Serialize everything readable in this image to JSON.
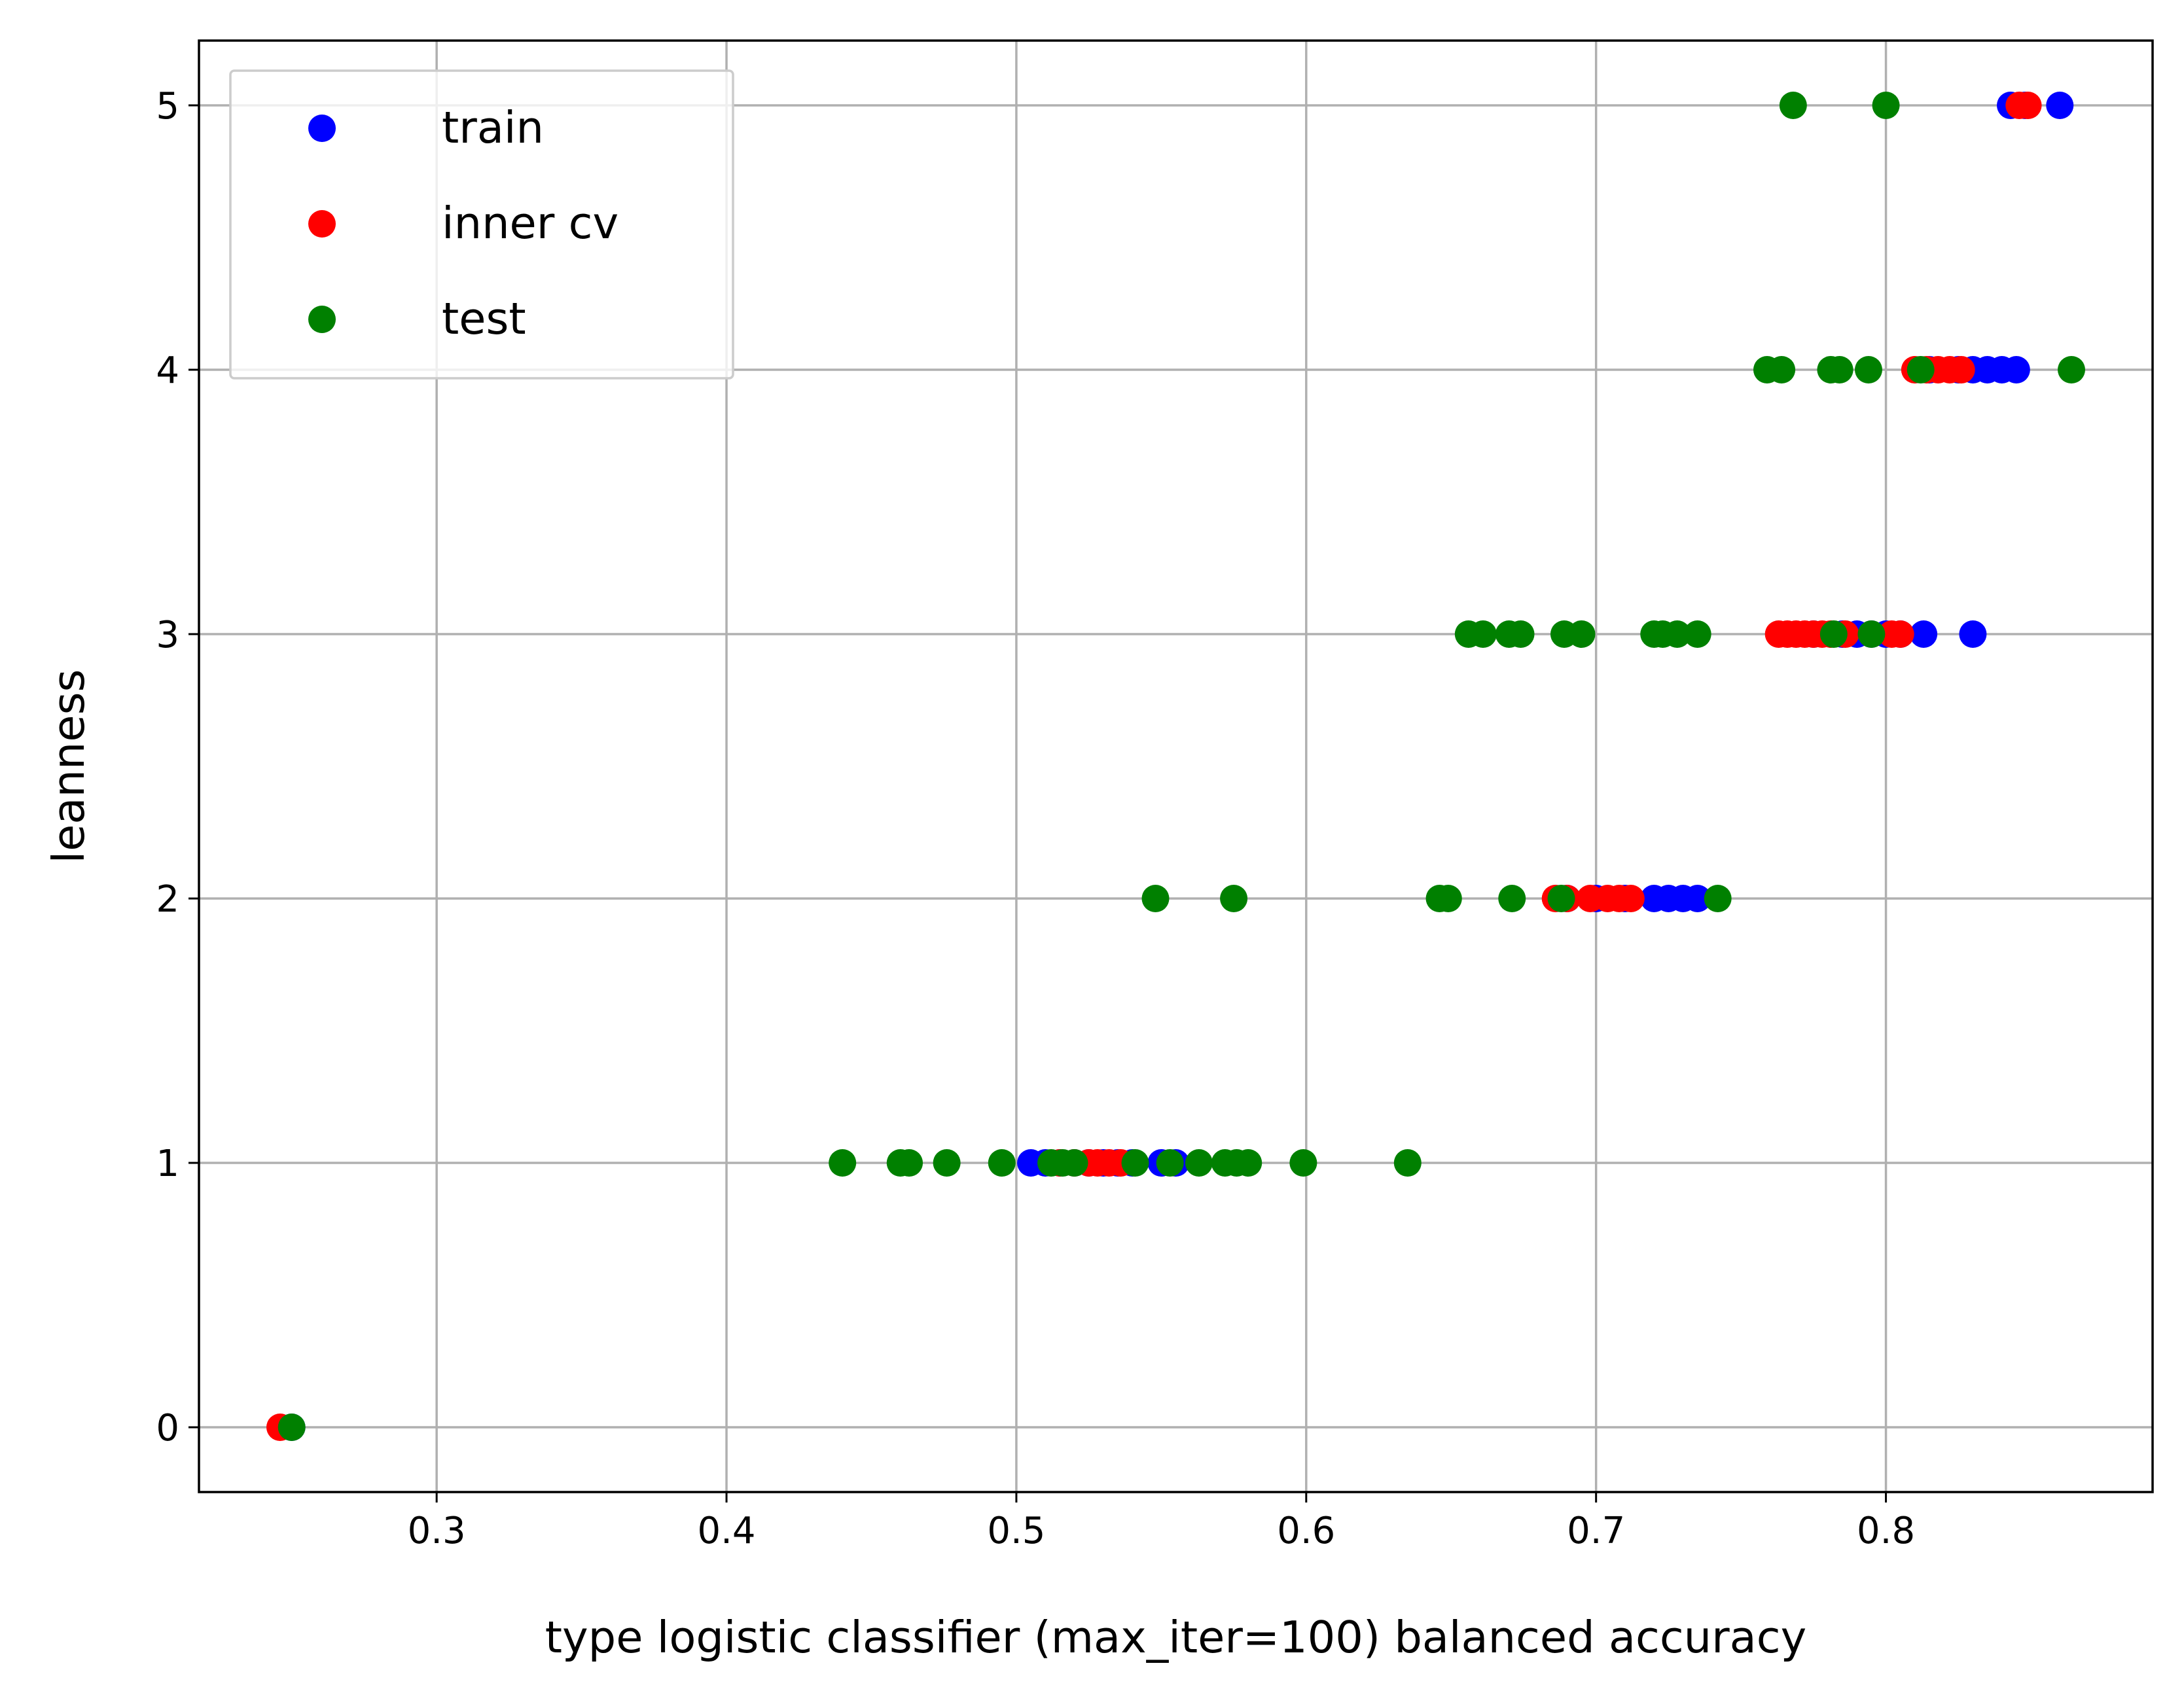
{
  "chart_data": {
    "type": "scatter",
    "xlabel": "type logistic classifier (max_iter=100) balanced accuracy",
    "ylabel": "leanness",
    "xlim": [
      0.218,
      0.892
    ],
    "ylim": [
      -0.245,
      5.245
    ],
    "x_ticks": [
      {
        "value": 0.3,
        "label": "0.3"
      },
      {
        "value": 0.4,
        "label": "0.4"
      },
      {
        "value": 0.5,
        "label": "0.5"
      },
      {
        "value": 0.6,
        "label": "0.6"
      },
      {
        "value": 0.7,
        "label": "0.7"
      },
      {
        "value": 0.8,
        "label": "0.8"
      }
    ],
    "y_ticks": [
      {
        "value": 0,
        "label": "0"
      },
      {
        "value": 1,
        "label": "1"
      },
      {
        "value": 2,
        "label": "2"
      },
      {
        "value": 3,
        "label": "3"
      },
      {
        "value": 4,
        "label": "4"
      },
      {
        "value": 5,
        "label": "5"
      }
    ],
    "grid": true,
    "legend_position": "top-left",
    "series": [
      {
        "name": "train",
        "color": "#0000ff",
        "points": [
          {
            "x": 0.25,
            "y": 0
          },
          {
            "x": 0.505,
            "y": 1
          },
          {
            "x": 0.51,
            "y": 1
          },
          {
            "x": 0.515,
            "y": 1
          },
          {
            "x": 0.52,
            "y": 1
          },
          {
            "x": 0.525,
            "y": 1
          },
          {
            "x": 0.53,
            "y": 1
          },
          {
            "x": 0.535,
            "y": 1
          },
          {
            "x": 0.54,
            "y": 1
          },
          {
            "x": 0.55,
            "y": 1
          },
          {
            "x": 0.555,
            "y": 1
          },
          {
            "x": 0.69,
            "y": 2
          },
          {
            "x": 0.7,
            "y": 2
          },
          {
            "x": 0.71,
            "y": 2
          },
          {
            "x": 0.72,
            "y": 2
          },
          {
            "x": 0.725,
            "y": 2
          },
          {
            "x": 0.73,
            "y": 2
          },
          {
            "x": 0.735,
            "y": 2
          },
          {
            "x": 0.775,
            "y": 3
          },
          {
            "x": 0.785,
            "y": 3
          },
          {
            "x": 0.79,
            "y": 3
          },
          {
            "x": 0.795,
            "y": 3
          },
          {
            "x": 0.8,
            "y": 3
          },
          {
            "x": 0.805,
            "y": 3
          },
          {
            "x": 0.813,
            "y": 3
          },
          {
            "x": 0.83,
            "y": 3
          },
          {
            "x": 0.815,
            "y": 4
          },
          {
            "x": 0.825,
            "y": 4
          },
          {
            "x": 0.83,
            "y": 4
          },
          {
            "x": 0.835,
            "y": 4
          },
          {
            "x": 0.84,
            "y": 4
          },
          {
            "x": 0.845,
            "y": 4
          },
          {
            "x": 0.843,
            "y": 5
          },
          {
            "x": 0.848,
            "y": 5
          },
          {
            "x": 0.86,
            "y": 5
          }
        ]
      },
      {
        "name": "inner cv",
        "color": "#ff0000",
        "points": [
          {
            "x": 0.246,
            "y": 0
          },
          {
            "x": 0.515,
            "y": 1
          },
          {
            "x": 0.52,
            "y": 1
          },
          {
            "x": 0.525,
            "y": 1
          },
          {
            "x": 0.528,
            "y": 1
          },
          {
            "x": 0.532,
            "y": 1
          },
          {
            "x": 0.536,
            "y": 1
          },
          {
            "x": 0.686,
            "y": 2
          },
          {
            "x": 0.69,
            "y": 2
          },
          {
            "x": 0.698,
            "y": 2
          },
          {
            "x": 0.704,
            "y": 2
          },
          {
            "x": 0.708,
            "y": 2
          },
          {
            "x": 0.712,
            "y": 2
          },
          {
            "x": 0.763,
            "y": 3
          },
          {
            "x": 0.766,
            "y": 3
          },
          {
            "x": 0.769,
            "y": 3
          },
          {
            "x": 0.772,
            "y": 3
          },
          {
            "x": 0.775,
            "y": 3
          },
          {
            "x": 0.778,
            "y": 3
          },
          {
            "x": 0.781,
            "y": 3
          },
          {
            "x": 0.786,
            "y": 3
          },
          {
            "x": 0.802,
            "y": 3
          },
          {
            "x": 0.805,
            "y": 3
          },
          {
            "x": 0.81,
            "y": 4
          },
          {
            "x": 0.814,
            "y": 4
          },
          {
            "x": 0.818,
            "y": 4
          },
          {
            "x": 0.822,
            "y": 4
          },
          {
            "x": 0.826,
            "y": 4
          },
          {
            "x": 0.846,
            "y": 5
          },
          {
            "x": 0.849,
            "y": 5
          }
        ]
      },
      {
        "name": "test",
        "color": "#008000",
        "points": [
          {
            "x": 0.25,
            "y": 0
          },
          {
            "x": 0.44,
            "y": 1
          },
          {
            "x": 0.46,
            "y": 1
          },
          {
            "x": 0.463,
            "y": 1
          },
          {
            "x": 0.476,
            "y": 1
          },
          {
            "x": 0.495,
            "y": 1
          },
          {
            "x": 0.512,
            "y": 1
          },
          {
            "x": 0.516,
            "y": 1
          },
          {
            "x": 0.52,
            "y": 1
          },
          {
            "x": 0.541,
            "y": 1
          },
          {
            "x": 0.553,
            "y": 1
          },
          {
            "x": 0.563,
            "y": 1
          },
          {
            "x": 0.572,
            "y": 1
          },
          {
            "x": 0.576,
            "y": 1
          },
          {
            "x": 0.58,
            "y": 1
          },
          {
            "x": 0.599,
            "y": 1
          },
          {
            "x": 0.635,
            "y": 1
          },
          {
            "x": 0.548,
            "y": 2
          },
          {
            "x": 0.575,
            "y": 2
          },
          {
            "x": 0.646,
            "y": 2
          },
          {
            "x": 0.649,
            "y": 2
          },
          {
            "x": 0.671,
            "y": 2
          },
          {
            "x": 0.688,
            "y": 2
          },
          {
            "x": 0.742,
            "y": 2
          },
          {
            "x": 0.656,
            "y": 3
          },
          {
            "x": 0.661,
            "y": 3
          },
          {
            "x": 0.67,
            "y": 3
          },
          {
            "x": 0.674,
            "y": 3
          },
          {
            "x": 0.689,
            "y": 3
          },
          {
            "x": 0.695,
            "y": 3
          },
          {
            "x": 0.72,
            "y": 3
          },
          {
            "x": 0.723,
            "y": 3
          },
          {
            "x": 0.728,
            "y": 3
          },
          {
            "x": 0.735,
            "y": 3
          },
          {
            "x": 0.782,
            "y": 3
          },
          {
            "x": 0.795,
            "y": 3
          },
          {
            "x": 0.759,
            "y": 4
          },
          {
            "x": 0.764,
            "y": 4
          },
          {
            "x": 0.781,
            "y": 4
          },
          {
            "x": 0.784,
            "y": 4
          },
          {
            "x": 0.794,
            "y": 4
          },
          {
            "x": 0.812,
            "y": 4
          },
          {
            "x": 0.864,
            "y": 4
          },
          {
            "x": 0.768,
            "y": 5
          },
          {
            "x": 0.8,
            "y": 5
          }
        ]
      }
    ]
  }
}
